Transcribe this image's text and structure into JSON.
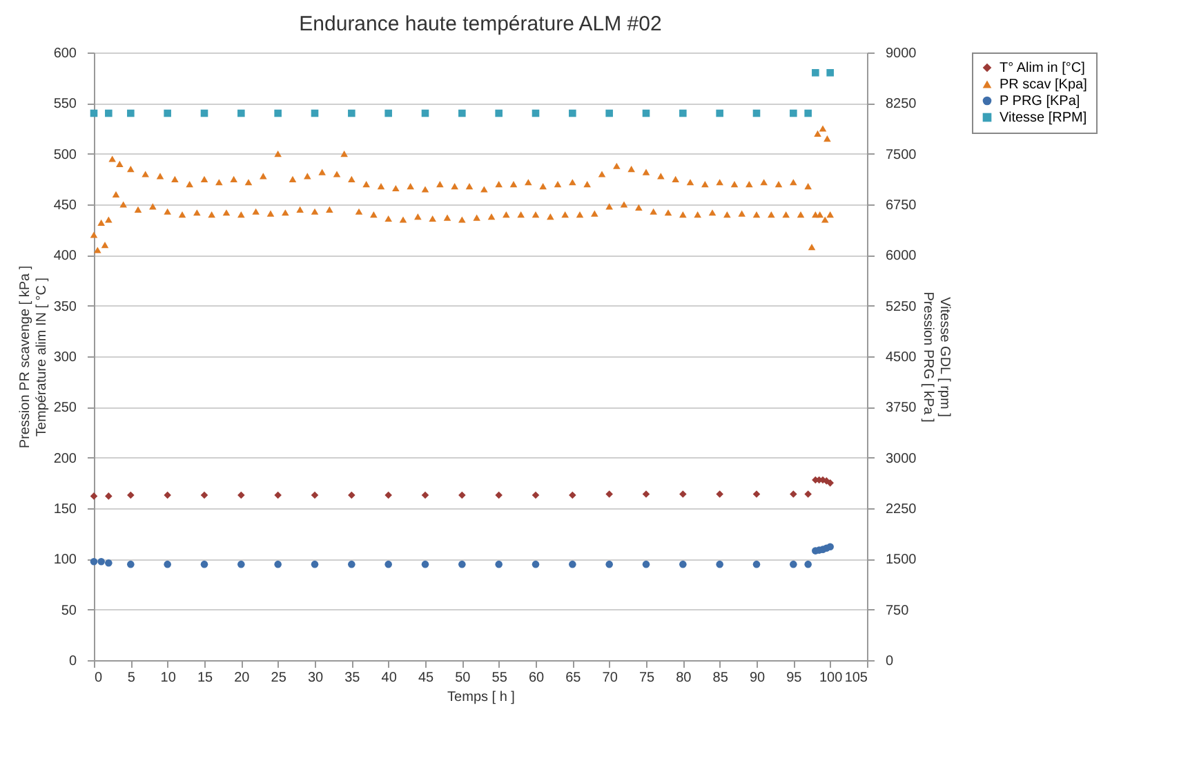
{
  "chart_data": {
    "type": "scatter",
    "title": "Endurance haute température ALM #02",
    "xlabel": "Temps [ h ]",
    "ylabel": "Pression PR scavenge [ kPa ]\nTempérature alim IN [ °C ]",
    "y2label": "Vitesse GDL [ rpm ]\nPression PRG [ kPa ]",
    "xlim": [
      0,
      105
    ],
    "xticks": [
      0,
      5,
      10,
      15,
      20,
      25,
      30,
      35,
      40,
      45,
      50,
      55,
      60,
      65,
      70,
      75,
      80,
      85,
      90,
      95,
      100,
      105
    ],
    "ylim": [
      0,
      600
    ],
    "yticks": [
      0,
      50,
      100,
      150,
      200,
      250,
      300,
      350,
      400,
      450,
      500,
      550,
      600
    ],
    "y2lim": [
      0,
      9000
    ],
    "y2ticks": [
      0,
      750,
      1500,
      2250,
      3000,
      3750,
      4500,
      5250,
      6000,
      6750,
      7500,
      8250,
      9000
    ],
    "grid": "y",
    "legend": "right",
    "series": [
      {
        "name": "T° Alim in [°C]",
        "color": "#9c3a36",
        "marker": "diamond",
        "x": [
          0,
          2,
          5,
          10,
          15,
          20,
          25,
          30,
          35,
          40,
          45,
          50,
          55,
          60,
          65,
          70,
          75,
          80,
          85,
          90,
          95,
          97,
          98,
          98.5,
          99,
          99.5,
          100
        ],
        "values": [
          162,
          162,
          163,
          163,
          163,
          163,
          163,
          163,
          163,
          163,
          163,
          163,
          163,
          163,
          163,
          164,
          164,
          164,
          164,
          164,
          164,
          164,
          178,
          178,
          178,
          177,
          175
        ]
      },
      {
        "name": "PR scav [Kpa]",
        "color": "#e07b22",
        "marker": "triangle",
        "x": [
          0,
          0.5,
          1,
          1.5,
          2,
          2.5,
          3,
          3.5,
          4,
          5,
          6,
          7,
          8,
          9,
          10,
          11,
          12,
          13,
          14,
          15,
          16,
          17,
          18,
          19,
          20,
          21,
          22,
          23,
          24,
          25,
          26,
          27,
          28,
          29,
          30,
          31,
          32,
          33,
          34,
          35,
          36,
          37,
          38,
          39,
          40,
          41,
          42,
          43,
          44,
          45,
          46,
          47,
          48,
          49,
          50,
          51,
          52,
          53,
          54,
          55,
          56,
          57,
          58,
          59,
          60,
          61,
          62,
          63,
          64,
          65,
          66,
          67,
          68,
          69,
          70,
          71,
          72,
          73,
          74,
          75,
          76,
          77,
          78,
          79,
          80,
          81,
          82,
          83,
          84,
          85,
          86,
          87,
          88,
          89,
          90,
          91,
          92,
          93,
          94,
          95,
          96,
          97,
          97.5,
          98,
          98.3,
          98.6,
          99,
          99.3,
          99.6,
          100
        ],
        "values": [
          420,
          405,
          432,
          410,
          435,
          495,
          460,
          490,
          450,
          485,
          445,
          480,
          448,
          478,
          443,
          475,
          440,
          470,
          442,
          475,
          440,
          472,
          442,
          475,
          440,
          472,
          443,
          478,
          441,
          500,
          442,
          475,
          445,
          478,
          443,
          482,
          445,
          480,
          500,
          475,
          443,
          470,
          440,
          468,
          436,
          466,
          435,
          468,
          438,
          465,
          436,
          470,
          437,
          468,
          435,
          468,
          437,
          465,
          438,
          470,
          440,
          470,
          440,
          472,
          440,
          468,
          438,
          470,
          440,
          472,
          440,
          470,
          441,
          480,
          448,
          488,
          450,
          485,
          447,
          482,
          443,
          478,
          442,
          475,
          440,
          472,
          440,
          470,
          442,
          472,
          440,
          470,
          441,
          470,
          440,
          472,
          440,
          470,
          440,
          472,
          440,
          468,
          408,
          440,
          520,
          440,
          525,
          435,
          515,
          440
        ]
      },
      {
        "name": "P PRG [KPa]",
        "color": "#3f6fab",
        "marker": "circle",
        "axis": "y2",
        "x": [
          0,
          1,
          2,
          5,
          10,
          15,
          20,
          25,
          30,
          35,
          40,
          45,
          50,
          55,
          60,
          65,
          70,
          75,
          80,
          85,
          90,
          95,
          97,
          98,
          98.5,
          99,
          99.5,
          100
        ],
        "values": [
          1460,
          1460,
          1440,
          1420,
          1420,
          1420,
          1420,
          1420,
          1420,
          1420,
          1420,
          1420,
          1420,
          1420,
          1420,
          1420,
          1420,
          1420,
          1420,
          1420,
          1420,
          1420,
          1420,
          1620,
          1630,
          1640,
          1660,
          1680
        ]
      },
      {
        "name": "Vitesse [RPM]",
        "color": "#3aa0b8",
        "marker": "square",
        "axis": "y2",
        "x": [
          0,
          2,
          5,
          10,
          15,
          20,
          25,
          30,
          35,
          40,
          45,
          50,
          55,
          60,
          65,
          70,
          75,
          80,
          85,
          90,
          95,
          97,
          98,
          100
        ],
        "values": [
          8100,
          8100,
          8100,
          8100,
          8100,
          8100,
          8100,
          8100,
          8100,
          8100,
          8100,
          8100,
          8100,
          8100,
          8100,
          8100,
          8100,
          8100,
          8100,
          8100,
          8100,
          8100,
          8700,
          8700
        ]
      }
    ]
  }
}
